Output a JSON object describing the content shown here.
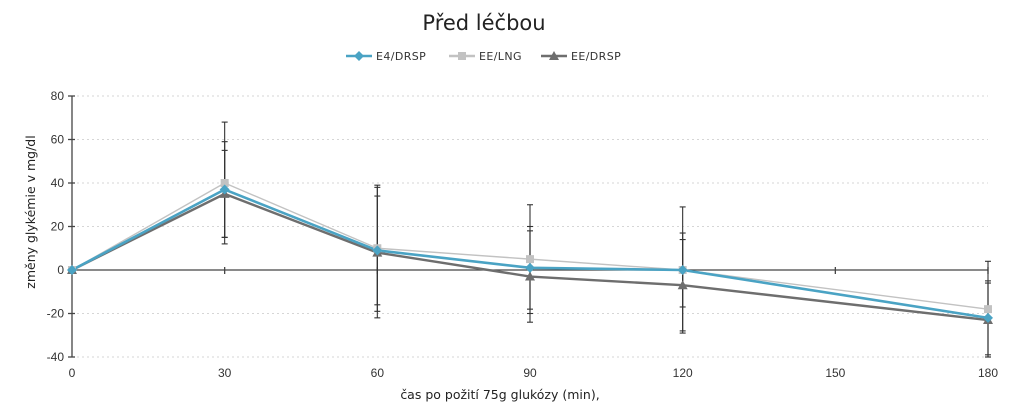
{
  "chart_data": {
    "type": "line",
    "title": "Před léčbou",
    "xlabel": "čas po požití 75g glukózy (min),",
    "ylabel": "změny glykémie v mg/dl",
    "x": [
      0,
      30,
      60,
      90,
      120,
      180
    ],
    "xticks": [
      0,
      30,
      60,
      90,
      120,
      150,
      180
    ],
    "xlim": [
      0,
      180
    ],
    "yticks": [
      -40,
      -20,
      0,
      20,
      40,
      60,
      80
    ],
    "ylim": [
      -40,
      80
    ],
    "grid": true,
    "legend_position": "top",
    "series": [
      {
        "name": "E4/DRSP",
        "color": "#4aa3c4",
        "marker": "diamond",
        "values": [
          0,
          37,
          9,
          1,
          0,
          -22
        ],
        "error": [
          0,
          22,
          25,
          19,
          17,
          17
        ]
      },
      {
        "name": "EE/LNG",
        "color": "#c2c2c2",
        "marker": "square",
        "values": [
          0,
          40,
          10,
          5,
          0,
          -18
        ],
        "error": [
          0,
          28,
          29,
          25,
          29,
          22
        ]
      },
      {
        "name": "EE/DRSP",
        "color": "#6e6e6e",
        "marker": "triangle",
        "values": [
          0,
          35,
          8,
          -3,
          -7,
          -23
        ],
        "error": [
          0,
          20,
          30,
          21,
          21,
          17
        ]
      }
    ]
  }
}
